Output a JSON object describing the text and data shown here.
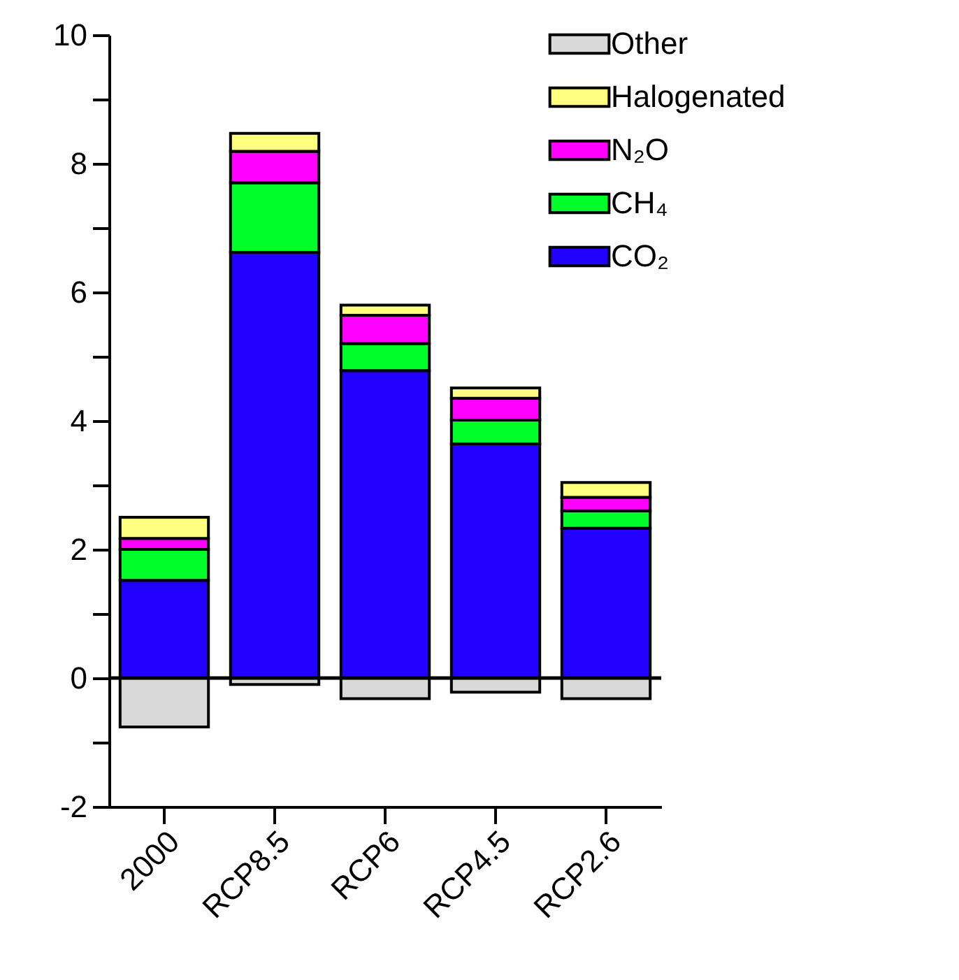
{
  "chart_data": {
    "type": "bar",
    "stacked": true,
    "categories": [
      "2000",
      "RCP8.5",
      "RCP6",
      "RCP4.5",
      "RCP2.6"
    ],
    "series": [
      {
        "name": "CO₂",
        "color": "#2200ff",
        "values": [
          1.52,
          6.62,
          4.78,
          3.64,
          2.33
        ]
      },
      {
        "name": "CH₄",
        "color": "#00ff2a",
        "values": [
          0.48,
          1.08,
          0.42,
          0.37,
          0.27
        ]
      },
      {
        "name": "N₂O",
        "color": "#ff00ff",
        "values": [
          0.17,
          0.49,
          0.44,
          0.34,
          0.21
        ]
      },
      {
        "name": "Halogenated",
        "color": "#ffff80",
        "values": [
          0.33,
          0.28,
          0.16,
          0.16,
          0.23
        ]
      },
      {
        "name": "Other",
        "color": "#d9d9d9",
        "values": [
          -0.76,
          -0.1,
          -0.32,
          -0.22,
          -0.32
        ]
      }
    ],
    "ylim": [
      -2,
      10
    ],
    "yticks": [
      -2,
      {
        "value": -1,
        "label": null
      },
      0,
      {
        "value": 1,
        "label": null
      },
      2,
      {
        "value": 3,
        "label": null
      },
      4,
      {
        "value": 5,
        "label": null
      },
      6,
      {
        "value": 7,
        "label": null
      },
      8,
      {
        "value": 9,
        "label": null
      },
      10
    ],
    "ref_lines": [
      {
        "axis": "y",
        "value": 0
      }
    ],
    "legend": "top right"
  }
}
